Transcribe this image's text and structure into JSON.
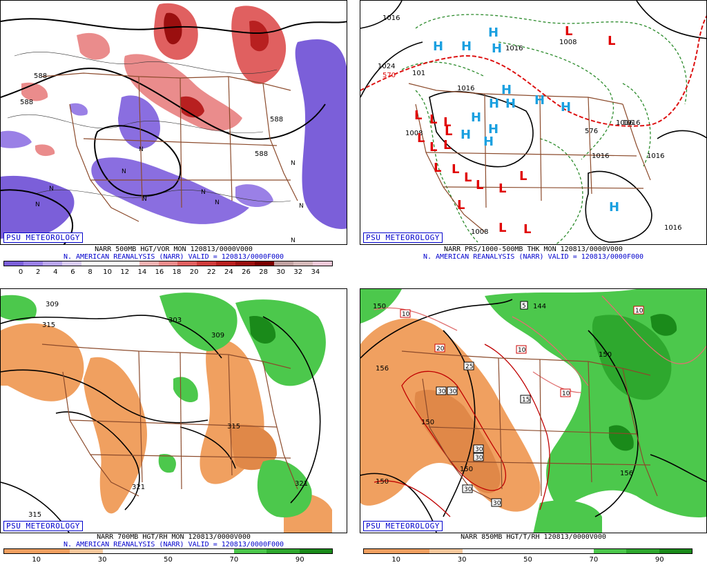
{
  "panels": [
    {
      "id": "vort500",
      "badge": "PSU METEOROLOGY",
      "caption1": "NARR 500MB HGT/VOR MON 120813/0000V000",
      "caption2": "N. AMERICAN REANALYSIS (NARR) VALID = 120813/0000F000",
      "colorbar": {
        "colors": [
          "#7b5fd9",
          "#9a80e6",
          "#b9a6ef",
          "#d9ccf6",
          "#ffffff",
          "#ffffff",
          "#ffffff",
          "#f2b3b3",
          "#ea8c8c",
          "#e06060",
          "#cf3b3b",
          "#b82020",
          "#9a0f0f",
          "#7a0000",
          "#c0a0a0",
          "#d4b8b8",
          "#f0c8d8"
        ],
        "ticks": [
          "0",
          "2",
          "4",
          "6",
          "8",
          "10",
          "12",
          "14",
          "16",
          "18",
          "20",
          "22",
          "24",
          "26",
          "28",
          "30",
          "32",
          "34"
        ]
      },
      "contour_labels": [
        "588",
        "588",
        "588",
        "588"
      ],
      "markers": [
        "N",
        "N",
        "N",
        "N",
        "N",
        "N",
        "N",
        "N",
        "N",
        "N"
      ]
    },
    {
      "id": "mslp",
      "badge": "PSU METEOROLOGY",
      "caption1": "NARR PRS/1000-500MB THK MON 120813/0000V000",
      "caption2": "N. AMERICAN REANALYSIS (NARR) VALID = 120813/0000F000",
      "contour_labels": [
        "1016",
        "1024",
        "570",
        "101",
        "1016",
        "1016",
        "1008",
        "1016",
        "1016",
        "1016",
        "1008",
        "576",
        "1016",
        "1016",
        "1008"
      ],
      "highs": [
        "H",
        "H",
        "H",
        "H",
        "H",
        "H",
        "H",
        "H",
        "H",
        "H",
        "H",
        "H",
        "H",
        "H"
      ],
      "lows": [
        "L",
        "L",
        "L",
        "L",
        "L",
        "L",
        "L",
        "L",
        "L",
        "L",
        "L",
        "L",
        "L",
        "L",
        "L",
        "L",
        "L",
        "L"
      ]
    },
    {
      "id": "rh700",
      "badge": "PSU METEOROLOGY",
      "caption1": "NARR 700MB HGT/RH MON 120813/0000V000",
      "caption2": "N. AMERICAN REANALYSIS (NARR) VALID = 120813/0000F000",
      "colorbar": {
        "colors": [
          "#f0a060",
          "#f0a060",
          "#f6c89c",
          "#ffffff",
          "#ffffff",
          "#ffffff",
          "#ffffff",
          "#4cc84c",
          "#2ea82e",
          "#1a8a1a"
        ],
        "ticks": [
          "10",
          "30",
          "50",
          "70",
          "90"
        ]
      },
      "contour_labels": [
        "309",
        "315",
        "303",
        "309",
        "315",
        "321",
        "321",
        "315"
      ]
    },
    {
      "id": "t850",
      "badge": "PSU METEOROLOGY",
      "caption1": "NARR 850MB HGT/T/RH 120813/0000V000",
      "caption2": "",
      "colorbar": {
        "colors": [
          "#f0a060",
          "#f0a060",
          "#f6c89c",
          "#ffffff",
          "#ffffff",
          "#ffffff",
          "#ffffff",
          "#4cc84c",
          "#2ea82e",
          "#1a8a1a"
        ],
        "ticks": [
          "10",
          "30",
          "50",
          "70",
          "90"
        ]
      },
      "contour_labels": [
        "150",
        "156",
        "150",
        "144",
        "150",
        "150",
        "150",
        "156"
      ],
      "temp_boxes": [
        "10",
        "10",
        "10",
        "20",
        "25",
        "15",
        "10",
        "30",
        "30",
        "30",
        "30",
        "30",
        "30",
        "5"
      ]
    }
  ]
}
